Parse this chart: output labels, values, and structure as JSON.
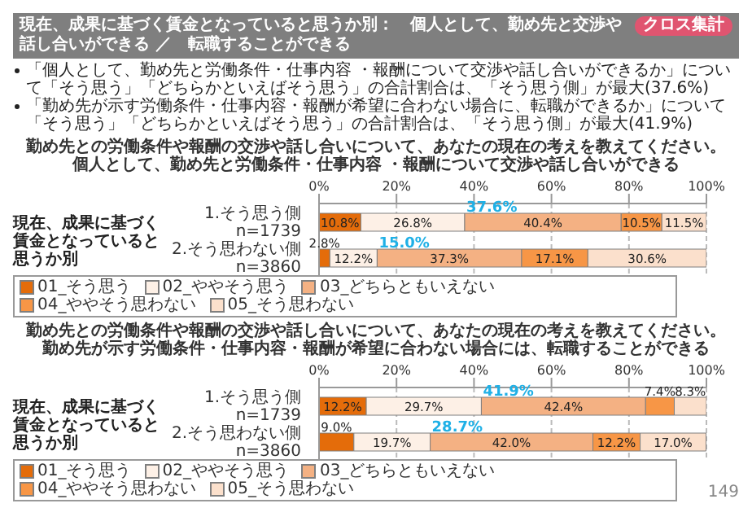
{
  "chart_data": [
    {
      "type": "bar",
      "orientation": "horizontal",
      "stacked": true,
      "title": "勤め先との労働条件や報酬の交渉や話し合いについて、あなたの現在の考えを教えてください。",
      "subtitle": "個人として、勤め先と労働条件・仕事内容 ・報酬について交渉や話し合いができる",
      "ylabel": "現在、成果に基づく賃金となっていると思うか別",
      "categories": [
        "1.そう思う側 n=1739",
        "2.そう思わない側 n=3860"
      ],
      "series": [
        {
          "name": "01_そう思う",
          "color": "#e46c0a",
          "values": [
            10.8,
            2.8
          ],
          "value_labels": [
            "10.8%",
            "2.8%"
          ]
        },
        {
          "name": "02_ややそう思う",
          "color": "#fdf0e6",
          "values": [
            26.8,
            12.2
          ],
          "value_labels": [
            "26.8%",
            "12.2%"
          ]
        },
        {
          "name": "03_どちらともいえない",
          "color": "#f4b183",
          "values": [
            40.4,
            37.3
          ],
          "value_labels": [
            "40.4%",
            "37.3%"
          ]
        },
        {
          "name": "04_ややそう思わない",
          "color": "#f79646",
          "values": [
            10.5,
            17.1
          ],
          "value_labels": [
            "10.5%",
            "17.1%"
          ]
        },
        {
          "name": "05_そう思わない",
          "color": "#fbe0cc",
          "values": [
            11.5,
            30.6
          ],
          "value_labels": [
            "11.5%",
            "30.6%"
          ]
        }
      ],
      "xlim": [
        0,
        100
      ],
      "xticks": [
        {
          "value": 0,
          "label": "0%"
        },
        {
          "value": 20,
          "label": "20%"
        },
        {
          "value": 40,
          "label": "40%"
        },
        {
          "value": 60,
          "label": "60%"
        },
        {
          "value": 80,
          "label": "80%"
        },
        {
          "value": 100,
          "label": "100%"
        }
      ],
      "grid": "x",
      "legend": "bottom",
      "annotations": [
        "クロス集計",
        "現在、成果に基づく賃金となっていると思うか別：　個人として、勤め先と交渉や話し合いができる ／　転職することができる",
        "「個人として、勤め先と労働条件・仕事内容 ・報酬について交渉や話し合いができるか」について「そう思う」「どちらかといえばそう思う」の合計割合は、「そう思う側」が最大(37.6%)",
        "「勤め先が示す労働条件・仕事内容・報酬が希望に合わない場合に、転職ができるか」について「そう思う」「どちらかといえばそう思う」の合計割合は、「そう思う側」が最大(41.9%)",
        {
          "text": "37.6%",
          "x": 37.6,
          "y": "1.そう思う側 n=1739"
        },
        {
          "text": "15.0%",
          "x": 15.0,
          "y": "2.そう思わない側 n=3860"
        }
      ]
    },
    {
      "type": "bar",
      "orientation": "horizontal",
      "stacked": true,
      "title": "勤め先との労働条件や報酬の交渉や話し合いについて、あなたの現在の考えを教えてください。",
      "subtitle": "勤め先が示す労働条件・仕事内容・報酬が希望に合わない場合には、転職することができる",
      "ylabel": "現在、成果に基づく賃金となっていると思うか別",
      "categories": [
        "1.そう思う側 n=1739",
        "2.そう思わない側 n=3860"
      ],
      "series": [
        {
          "name": "01_そう思う",
          "color": "#e46c0a",
          "values": [
            12.2,
            9.0
          ],
          "value_labels": [
            "12.2%",
            "9.0%"
          ]
        },
        {
          "name": "02_ややそう思う",
          "color": "#fdf0e6",
          "values": [
            29.7,
            19.7
          ],
          "value_labels": [
            "29.7%",
            "19.7%"
          ]
        },
        {
          "name": "03_どちらともいえない",
          "color": "#f4b183",
          "values": [
            42.4,
            42.0
          ],
          "value_labels": [
            "42.4%",
            "42.0%"
          ]
        },
        {
          "name": "04_ややそう思わない",
          "color": "#f79646",
          "values": [
            7.4,
            12.2
          ],
          "value_labels": [
            "7.4%",
            "12.2%"
          ]
        },
        {
          "name": "05_そう思わない",
          "color": "#fbe0cc",
          "values": [
            8.3,
            17.0
          ],
          "value_labels": [
            "8.3%",
            "17.0%"
          ]
        }
      ],
      "xlim": [
        0,
        100
      ],
      "xticks": [
        {
          "value": 0,
          "label": "0%"
        },
        {
          "value": 20,
          "label": "20%"
        },
        {
          "value": 40,
          "label": "40%"
        },
        {
          "value": 60,
          "label": "60%"
        },
        {
          "value": 80,
          "label": "80%"
        },
        {
          "value": 100,
          "label": "100%"
        }
      ],
      "grid": "x",
      "legend": "bottom",
      "annotations": [
        "149",
        {
          "text": "41.9%",
          "x": 41.9,
          "y": "1.そう思う側 n=1739"
        },
        {
          "text": "28.7%",
          "x": 28.7,
          "y": "2.そう思わない側 n=3860"
        }
      ]
    }
  ]
}
